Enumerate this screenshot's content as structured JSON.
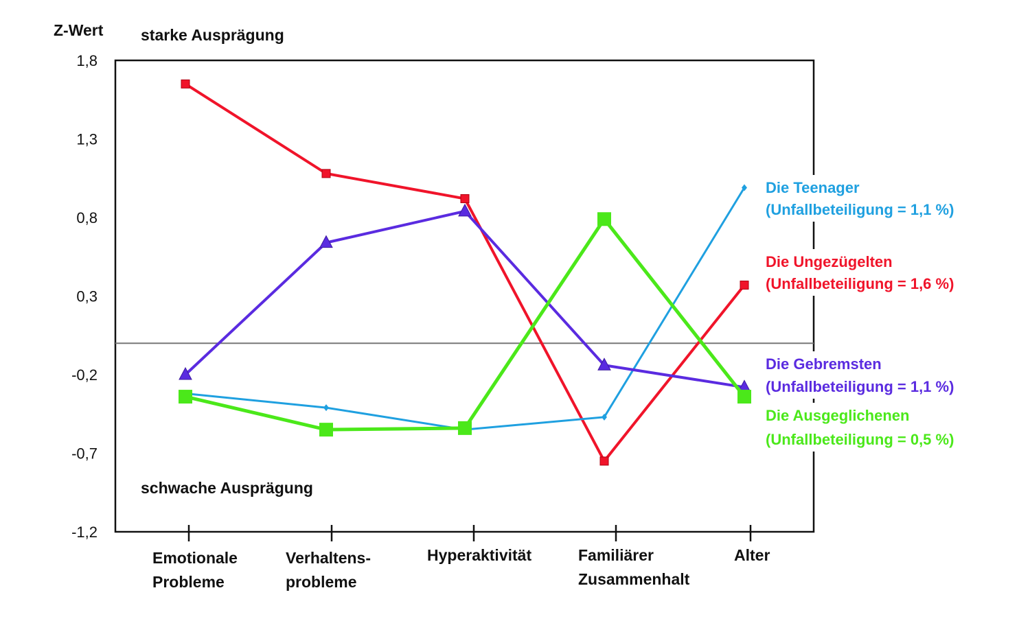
{
  "chart_data": {
    "type": "line",
    "ylabel": "Z-Wert",
    "annotation_top": "starke Ausprägung",
    "annotation_bottom": "schwache Ausprägung",
    "ylim": [
      -1.2,
      1.8
    ],
    "yticks": [
      "1,8",
      "1,3",
      "0,8",
      "0,3",
      "-0,2",
      "-0,7",
      "-1,2"
    ],
    "ytick_values": [
      1.8,
      1.3,
      0.8,
      0.3,
      -0.2,
      -0.7,
      -1.2
    ],
    "grid": false,
    "categories": [
      [
        "Emotionale",
        "Probleme"
      ],
      [
        "Verhaltens-",
        "probleme"
      ],
      [
        "Hyperaktivität"
      ],
      [
        "Familiärer",
        "Zusammenhalt"
      ],
      [
        "Alter"
      ]
    ],
    "legend_placement": "right",
    "series": [
      {
        "name": "Die Teenager",
        "note": "(Unfallbeteiligung = 1,1 %)",
        "color": "#1fa0e0",
        "marker": "diamond",
        "values": [
          -0.32,
          -0.41,
          -0.55,
          -0.47,
          0.99
        ]
      },
      {
        "name": "Die Ungezügelten",
        "note": "(Unfallbeteiligung = 1,6  %)",
        "color": "#f0142a",
        "marker": "square-small",
        "values": [
          1.65,
          1.08,
          0.92,
          -0.75,
          0.37
        ]
      },
      {
        "name": "Die  Gebremsten",
        "note": "(Unfallbeteiligung = 1,1  %)",
        "color": "#5a2be0",
        "marker": "triangle",
        "values": [
          -0.2,
          0.64,
          0.84,
          -0.14,
          -0.28
        ]
      },
      {
        "name": "Die Ausgeglichenen",
        "note": "(Unfallbeteiligung = 0,5  %)",
        "color": "#4be81a",
        "marker": "square",
        "values": [
          -0.34,
          -0.55,
          -0.54,
          0.79,
          -0.34
        ]
      }
    ]
  }
}
